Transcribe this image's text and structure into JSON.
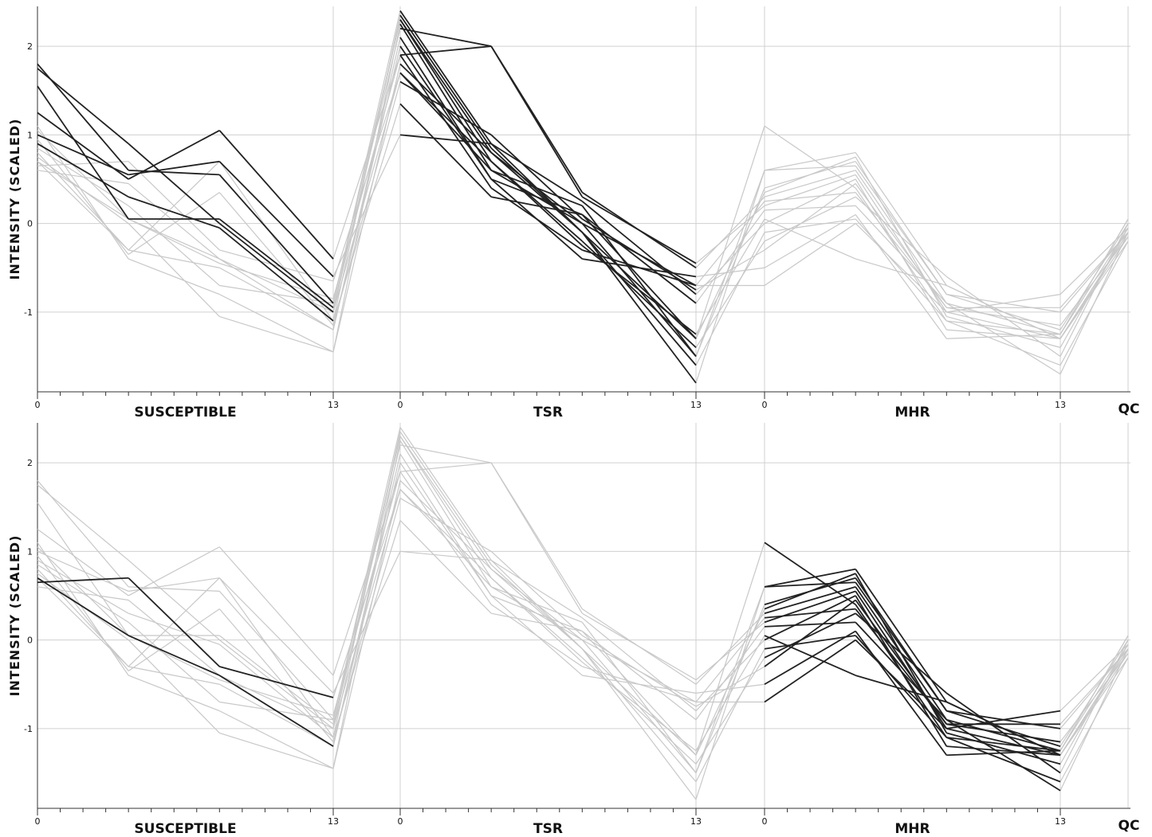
{
  "chart_data": [
    {
      "type": "line",
      "ylabel": "INTENSITY (SCALED)",
      "ylim": [
        -1.9,
        2.45
      ],
      "yticks": [
        -1,
        0,
        1,
        2
      ],
      "grid": true,
      "connector_color": "#c8c8c8",
      "groups": [
        {
          "name": "SUSCEPTIBLE",
          "x": [
            0,
            4,
            8,
            13
          ],
          "xlim": [
            0,
            13
          ],
          "xticks": [
            0,
            13
          ]
        },
        {
          "name": "TSR",
          "x": [
            0,
            4,
            8,
            13
          ],
          "xlim": [
            0,
            13
          ],
          "xticks": [
            0,
            13
          ]
        },
        {
          "name": "MHR",
          "x": [
            0,
            4,
            8,
            13
          ],
          "xlim": [
            0,
            13
          ],
          "xticks": [
            0,
            13
          ]
        }
      ],
      "qc_label": "QC",
      "series": [
        {
          "colors": [
            "#222222",
            "#222222",
            "#c8c8c8"
          ],
          "values": [
            1.8,
            0.6,
            0.55,
            -0.9,
            2.4,
            0.9,
            -0.1,
            -1.8,
            0.6,
            0.8,
            -0.7,
            -1.3,
            -0.1
          ]
        },
        {
          "colors": [
            "#222222",
            "#222222",
            "#c8c8c8"
          ],
          "values": [
            1.75,
            0.9,
            0.0,
            -1.0,
            2.3,
            0.8,
            0.0,
            -1.5,
            0.4,
            0.7,
            -0.8,
            -1.2,
            0.0
          ]
        },
        {
          "colors": [
            "#222222",
            "#222222",
            "#c8c8c8"
          ],
          "values": [
            1.55,
            0.05,
            0.05,
            -0.95,
            2.2,
            2.0,
            0.35,
            -0.5,
            0.3,
            0.6,
            -0.9,
            -1.25,
            -0.05
          ]
        },
        {
          "colors": [
            "#222222",
            "#222222",
            "#c8c8c8"
          ],
          "values": [
            1.25,
            0.5,
            1.05,
            -0.4,
            1.9,
            2.0,
            0.3,
            -0.45,
            0.2,
            0.55,
            -1.0,
            -1.3,
            -0.1
          ]
        },
        {
          "colors": [
            "#222222",
            "#222222",
            "#c8c8c8"
          ],
          "values": [
            1.0,
            0.55,
            0.7,
            -0.6,
            1.0,
            0.9,
            0.25,
            -0.8,
            0.0,
            0.5,
            -1.2,
            -1.3,
            -0.15
          ]
        },
        {
          "colors": [
            "#222222",
            "#222222",
            "#c8c8c8"
          ],
          "values": [
            0.9,
            0.3,
            -0.05,
            -1.1,
            1.35,
            0.3,
            0.1,
            -1.3,
            1.1,
            0.4,
            -1.1,
            -1.6,
            -0.2
          ]
        },
        {
          "colors": [
            "#c8c8c8",
            "#222222",
            "#c8c8c8"
          ],
          "values": [
            0.7,
            0.05,
            -0.4,
            -1.2,
            2.0,
            0.5,
            -0.4,
            -0.6,
            -0.5,
            0.1,
            -1.3,
            -1.25,
            0.05
          ]
        },
        {
          "colors": [
            "#c8c8c8",
            "#222222",
            "#c8c8c8"
          ],
          "values": [
            0.65,
            0.7,
            -0.3,
            -0.65,
            1.7,
            0.6,
            0.0,
            -0.7,
            -0.7,
            0.0,
            -1.0,
            -0.8,
            -0.05
          ]
        },
        {
          "colors": [
            "#c8c8c8",
            "#222222",
            "#c8c8c8"
          ],
          "values": [
            0.6,
            0.45,
            -0.4,
            -1.0,
            1.7,
            0.7,
            -0.2,
            -1.4,
            -0.2,
            0.3,
            -0.6,
            -1.5,
            0.0
          ]
        },
        {
          "colors": [
            "#c8c8c8",
            "#222222",
            "#c8c8c8"
          ],
          "values": [
            0.8,
            -0.3,
            -0.5,
            -1.2,
            2.1,
            0.5,
            0.1,
            -0.9,
            0.15,
            0.2,
            -0.9,
            -1.7,
            -0.1
          ]
        },
        {
          "colors": [
            "#c8c8c8",
            "#222222",
            "#c8c8c8"
          ],
          "values": [
            1.1,
            -0.4,
            -0.8,
            -1.45,
            1.8,
            0.8,
            -0.1,
            -1.3,
            0.35,
            0.75,
            -1.05,
            -1.4,
            -0.05
          ]
        },
        {
          "colors": [
            "#c8c8c8",
            "#222222",
            "#c8c8c8"
          ],
          "values": [
            0.75,
            0.0,
            -1.05,
            -1.45,
            2.25,
            0.6,
            0.2,
            -1.5,
            0.6,
            0.65,
            -0.8,
            -1.0,
            -0.1
          ]
        },
        {
          "colors": [
            "#c8c8c8",
            "#222222",
            "#c8c8c8"
          ],
          "values": [
            0.95,
            -0.35,
            0.35,
            -1.15,
            1.6,
            1.0,
            0.05,
            -0.75,
            -0.3,
            0.45,
            -0.95,
            -1.15,
            -0.15
          ]
        },
        {
          "colors": [
            "#c8c8c8",
            "#222222",
            "#c8c8c8"
          ],
          "values": [
            0.85,
            0.2,
            -0.7,
            -0.9,
            2.3,
            0.7,
            -0.25,
            -1.25,
            0.05,
            -0.4,
            -0.7,
            -1.3,
            -0.2
          ]
        },
        {
          "colors": [
            "#c8c8c8",
            "#222222",
            "#c8c8c8"
          ],
          "values": [
            0.7,
            -0.3,
            0.7,
            -1.1,
            2.35,
            0.85,
            -0.1,
            -1.6,
            -0.1,
            0.05,
            -1.1,
            -1.25,
            0.05
          ]
        },
        {
          "colors": [
            "#c8c8c8",
            "#222222",
            "#c8c8c8"
          ],
          "values": [
            1.05,
            0.05,
            -0.45,
            -0.85,
            1.9,
            0.4,
            -0.3,
            -0.7,
            0.25,
            0.35,
            -0.95,
            -0.95,
            -0.1
          ]
        }
      ]
    },
    {
      "type": "line",
      "ylabel": "INTENSITY (SCALED)",
      "ylim": [
        -1.9,
        2.45
      ],
      "yticks": [
        -1,
        0,
        1,
        2
      ],
      "grid": true,
      "connector_color": "#c8c8c8",
      "groups": [
        {
          "name": "SUSCEPTIBLE",
          "x": [
            0,
            4,
            8,
            13
          ],
          "xlim": [
            0,
            13
          ],
          "xticks": [
            0,
            13
          ]
        },
        {
          "name": "TSR",
          "x": [
            0,
            4,
            8,
            13
          ],
          "xlim": [
            0,
            13
          ],
          "xticks": [
            0,
            13
          ]
        },
        {
          "name": "MHR",
          "x": [
            0,
            4,
            8,
            13
          ],
          "xlim": [
            0,
            13
          ],
          "xticks": [
            0,
            13
          ]
        }
      ],
      "qc_label": "QC",
      "series": [
        {
          "colors": [
            "#c8c8c8",
            "#c8c8c8",
            "#222222"
          ],
          "values": [
            1.8,
            0.6,
            0.55,
            -0.9,
            2.4,
            0.9,
            -0.1,
            -1.8,
            0.6,
            0.8,
            -0.7,
            -1.3,
            -0.1
          ]
        },
        {
          "colors": [
            "#c8c8c8",
            "#c8c8c8",
            "#222222"
          ],
          "values": [
            1.75,
            0.9,
            0.0,
            -1.0,
            2.3,
            0.8,
            0.0,
            -1.5,
            0.4,
            0.7,
            -0.8,
            -1.2,
            0.0
          ]
        },
        {
          "colors": [
            "#c8c8c8",
            "#c8c8c8",
            "#222222"
          ],
          "values": [
            1.55,
            0.05,
            0.05,
            -0.95,
            2.2,
            2.0,
            0.35,
            -0.5,
            0.3,
            0.6,
            -0.9,
            -1.25,
            -0.05
          ]
        },
        {
          "colors": [
            "#c8c8c8",
            "#c8c8c8",
            "#222222"
          ],
          "values": [
            1.25,
            0.5,
            1.05,
            -0.4,
            1.9,
            2.0,
            0.3,
            -0.45,
            0.2,
            0.55,
            -1.0,
            -1.3,
            -0.1
          ]
        },
        {
          "colors": [
            "#c8c8c8",
            "#c8c8c8",
            "#222222"
          ],
          "values": [
            1.0,
            0.55,
            0.7,
            -0.6,
            1.0,
            0.9,
            0.25,
            -0.8,
            0.0,
            0.5,
            -1.2,
            -1.3,
            -0.15
          ]
        },
        {
          "colors": [
            "#c8c8c8",
            "#c8c8c8",
            "#222222"
          ],
          "values": [
            0.9,
            0.3,
            -0.05,
            -1.1,
            1.35,
            0.3,
            0.1,
            -1.3,
            1.1,
            0.4,
            -1.1,
            -1.6,
            -0.2
          ]
        },
        {
          "colors": [
            "#222222",
            "#c8c8c8",
            "#222222"
          ],
          "values": [
            0.7,
            0.05,
            -0.4,
            -1.2,
            2.0,
            0.5,
            -0.4,
            -0.6,
            -0.5,
            0.1,
            -1.3,
            -1.25,
            0.05
          ]
        },
        {
          "colors": [
            "#222222",
            "#c8c8c8",
            "#222222"
          ],
          "values": [
            0.65,
            0.7,
            -0.3,
            -0.65,
            1.7,
            0.6,
            0.0,
            -0.7,
            -0.7,
            0.0,
            -1.0,
            -0.8,
            -0.05
          ]
        },
        {
          "colors": [
            "#c8c8c8",
            "#c8c8c8",
            "#222222"
          ],
          "values": [
            0.6,
            0.45,
            -0.4,
            -1.0,
            1.7,
            0.7,
            -0.2,
            -1.4,
            -0.2,
            0.3,
            -0.6,
            -1.5,
            0.0
          ]
        },
        {
          "colors": [
            "#c8c8c8",
            "#c8c8c8",
            "#222222"
          ],
          "values": [
            0.8,
            -0.3,
            -0.5,
            -1.2,
            2.1,
            0.5,
            0.1,
            -0.9,
            0.15,
            0.2,
            -0.9,
            -1.7,
            -0.1
          ]
        },
        {
          "colors": [
            "#c8c8c8",
            "#c8c8c8",
            "#222222"
          ],
          "values": [
            1.1,
            -0.4,
            -0.8,
            -1.45,
            1.8,
            0.8,
            -0.1,
            -1.3,
            0.35,
            0.75,
            -1.05,
            -1.4,
            -0.05
          ]
        },
        {
          "colors": [
            "#c8c8c8",
            "#c8c8c8",
            "#222222"
          ],
          "values": [
            0.75,
            0.0,
            -1.05,
            -1.45,
            2.25,
            0.6,
            0.2,
            -1.5,
            0.6,
            0.65,
            -0.8,
            -1.0,
            -0.1
          ]
        },
        {
          "colors": [
            "#c8c8c8",
            "#c8c8c8",
            "#222222"
          ],
          "values": [
            0.95,
            -0.35,
            0.35,
            -1.15,
            1.6,
            1.0,
            0.05,
            -0.75,
            -0.3,
            0.45,
            -0.95,
            -1.15,
            -0.15
          ]
        },
        {
          "colors": [
            "#c8c8c8",
            "#c8c8c8",
            "#222222"
          ],
          "values": [
            0.85,
            0.2,
            -0.7,
            -0.9,
            2.3,
            0.7,
            -0.25,
            -1.25,
            0.05,
            -0.4,
            -0.7,
            -1.3,
            -0.2
          ]
        },
        {
          "colors": [
            "#c8c8c8",
            "#c8c8c8",
            "#222222"
          ],
          "values": [
            0.7,
            -0.3,
            0.7,
            -1.1,
            2.35,
            0.85,
            -0.1,
            -1.6,
            -0.1,
            0.05,
            -1.1,
            -1.25,
            0.05
          ]
        },
        {
          "colors": [
            "#c8c8c8",
            "#c8c8c8",
            "#222222"
          ],
          "values": [
            1.05,
            0.05,
            -0.45,
            -0.85,
            1.9,
            0.4,
            -0.3,
            -0.7,
            0.25,
            0.35,
            -0.95,
            -0.95,
            -0.1
          ]
        }
      ]
    }
  ]
}
